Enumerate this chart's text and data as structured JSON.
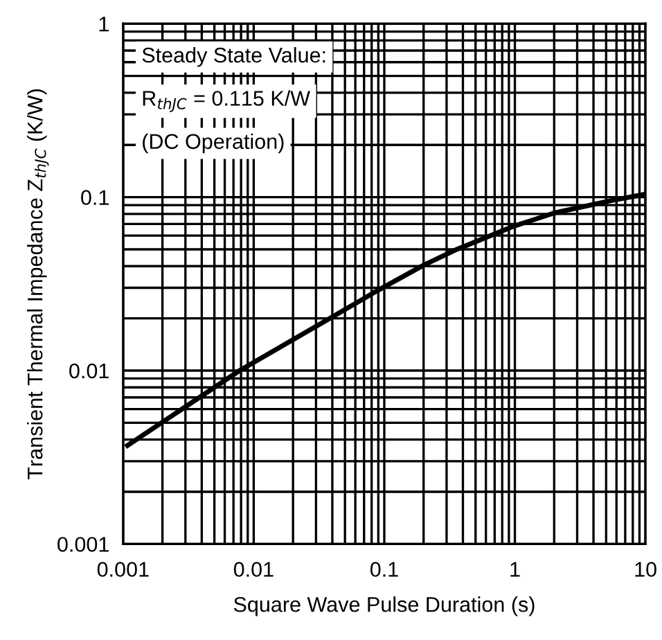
{
  "chart_data": {
    "type": "line",
    "xlabel": "Square Wave Pulse Duration (s)",
    "ylabel": "Transient Thermal Impedance Z$_{thJC}$ (K/W)",
    "annotations": [
      "Steady State Value:",
      "R$_{ thJC}$ = 0.115 K/W",
      "(DC Operation)"
    ],
    "log": "xy",
    "grid": true,
    "marker": "none",
    "line_style": "solid",
    "xlim": [
      0.001,
      10
    ],
    "ylim": [
      0.001,
      1
    ],
    "xticks": [
      0.001,
      0.01,
      0.1,
      1,
      10
    ],
    "yticks": [
      0.001,
      0.01,
      0.1,
      1
    ],
    "series": [
      {
        "color": "#000000",
        "x": [
          0.00108,
          0.0078,
          0.037,
          0.09,
          0.2,
          0.36,
          0.96,
          2.0,
          5.3,
          10
        ],
        "values": [
          0.0037,
          0.01,
          0.0197,
          0.0291,
          0.0405,
          0.05,
          0.0676,
          0.081,
          0.095,
          0.104
        ]
      }
    ]
  }
}
